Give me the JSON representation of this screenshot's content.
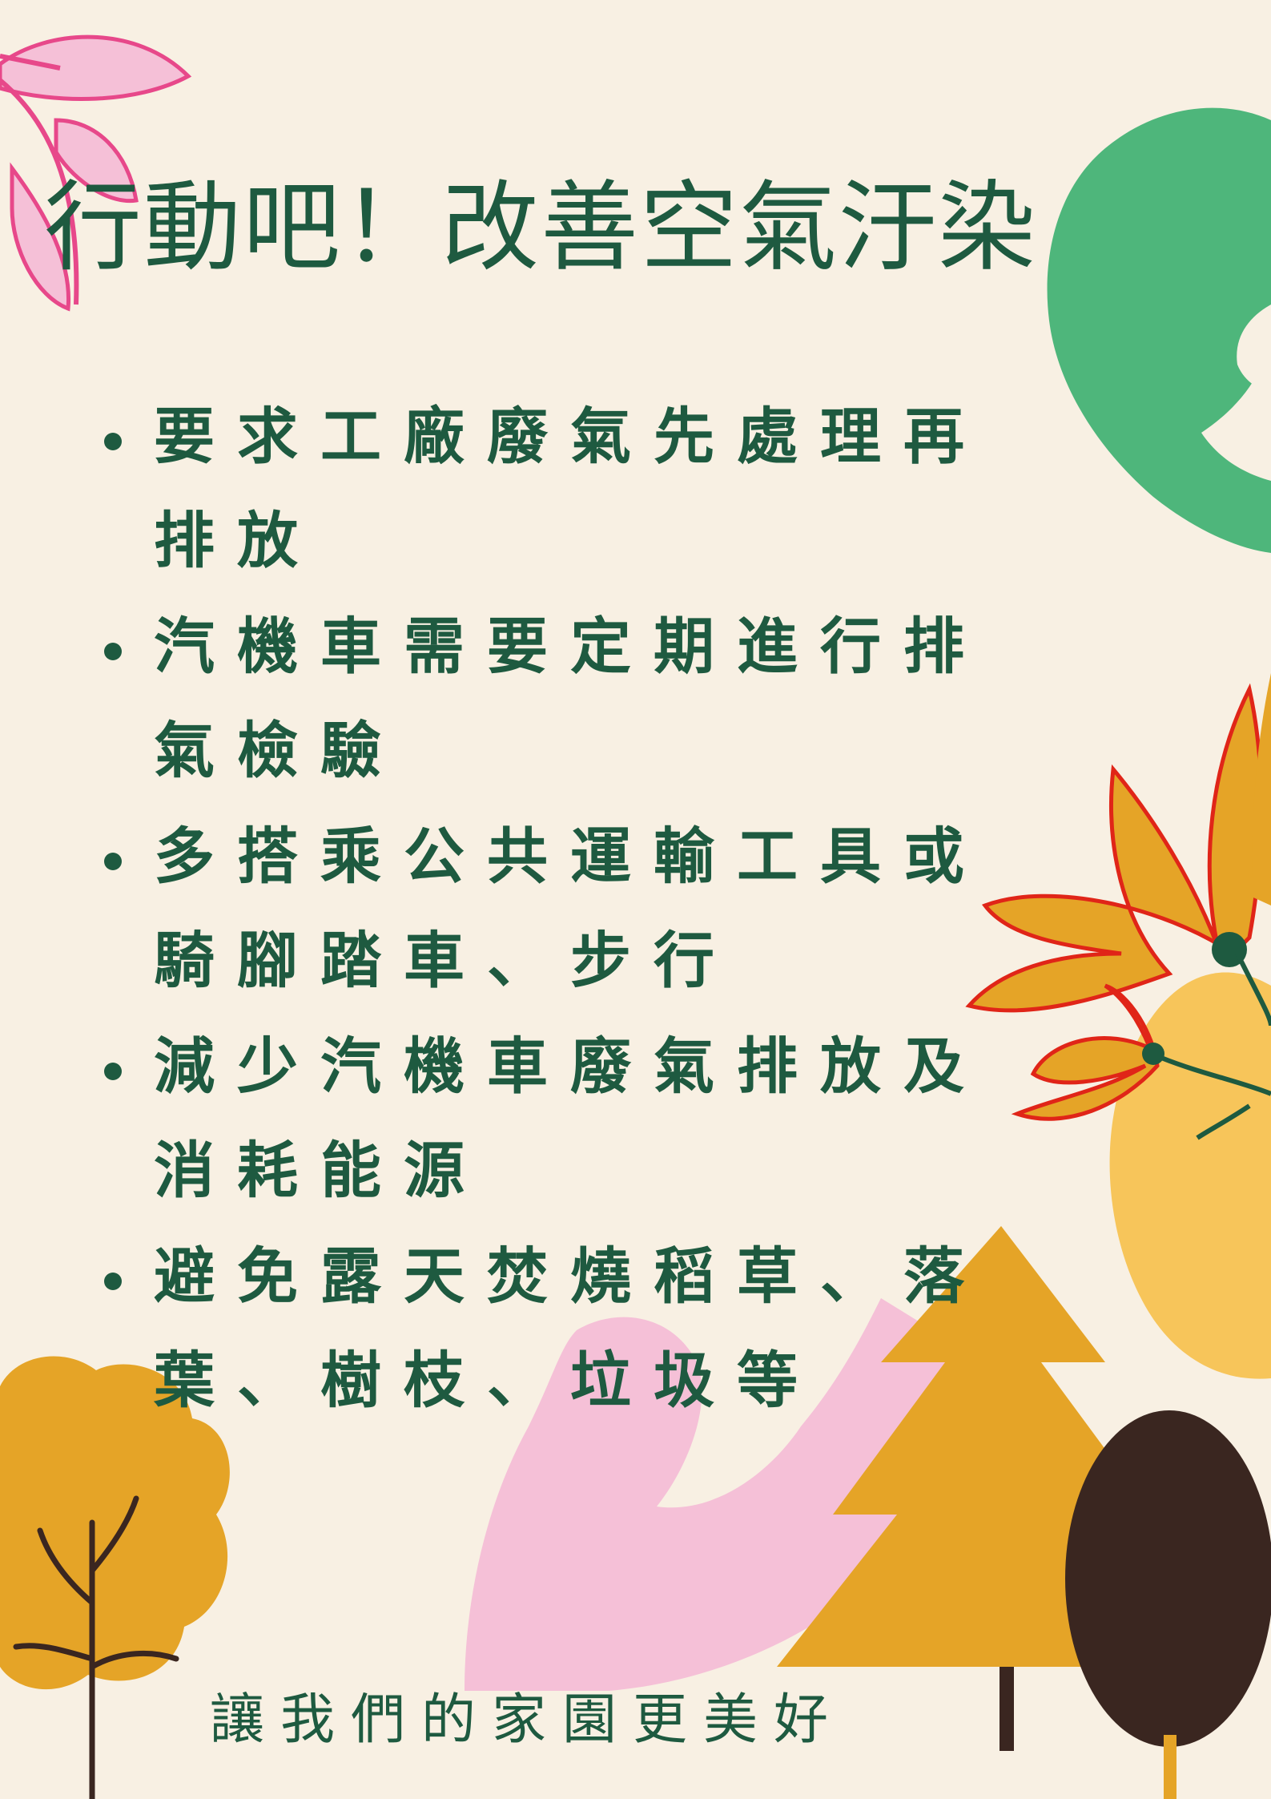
{
  "title": "行動吧！改善空氣汙染",
  "items": [
    "要求工廠廢氣先處理再排放",
    "汽機車需要定期進行排氣檢驗",
    "多搭乘公共運輸工具或騎腳踏車、步行",
    "減少汽機車廢氣排放及消耗能源",
    "避免露天焚燒稻草、落葉、樹枝、垃圾等"
  ],
  "footer": "讓我們的家園更美好",
  "colors": {
    "background": "#f8f0e3",
    "text": "#1e5a40",
    "green_accent": "#4eb67b",
    "pink": "#f5c0d7",
    "orange": "#e5a427",
    "yellow": "#f7c55a",
    "red": "#e02518",
    "brown": "#3a2620"
  }
}
